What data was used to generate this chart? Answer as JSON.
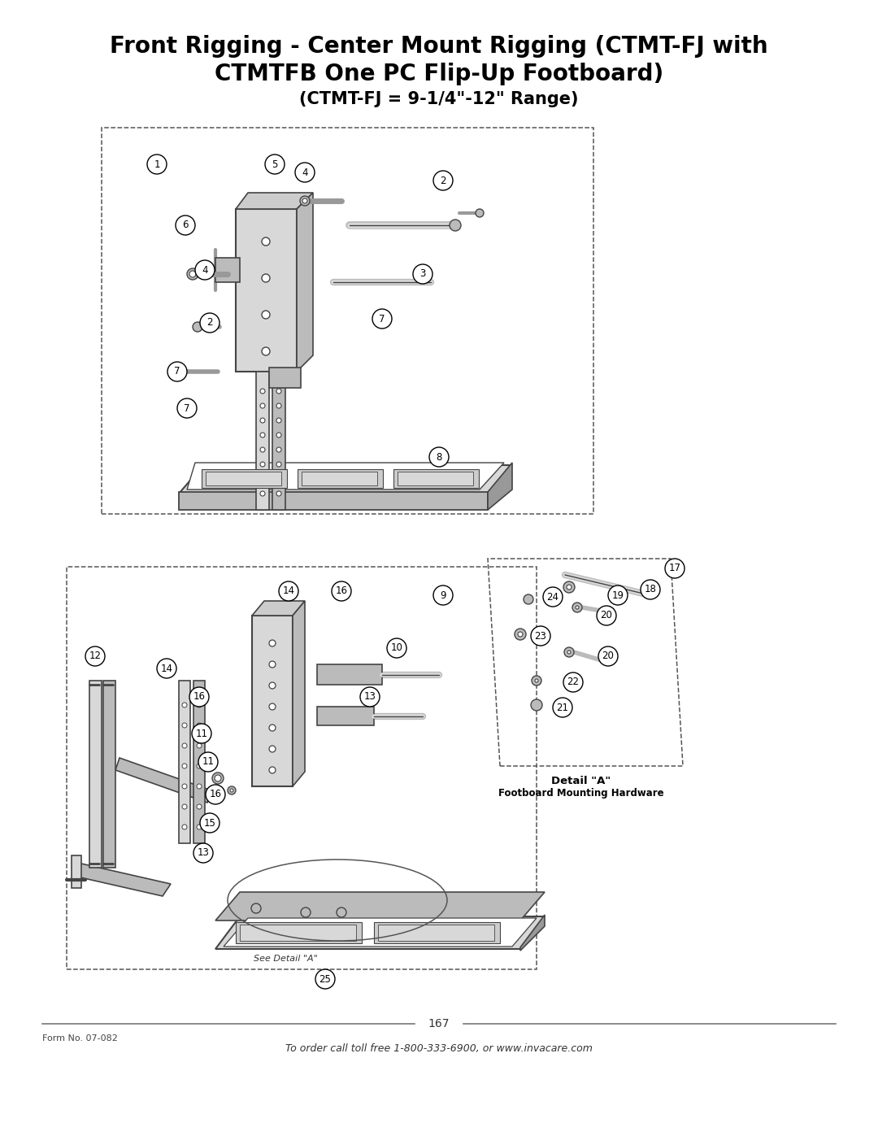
{
  "title_line1": "Front Rigging - Center Mount Rigging (CTMT-FJ with",
  "title_line2": "CTMTFB One PC Flip-Up Footboard)",
  "title_line3": "(CTMT-FJ = 9-1/4\"-12\" Range)",
  "page_number": "167",
  "form_number": "Form No. 07-082",
  "footer_text": "To order call toll free 1-800-333-6900, or www.invacare.com",
  "bg": "#ffffff",
  "lc": "#444444",
  "dc": "#888888",
  "gray1": "#d8d8d8",
  "gray2": "#bbbbbb",
  "gray3": "#999999",
  "gray4": "#cccccc"
}
